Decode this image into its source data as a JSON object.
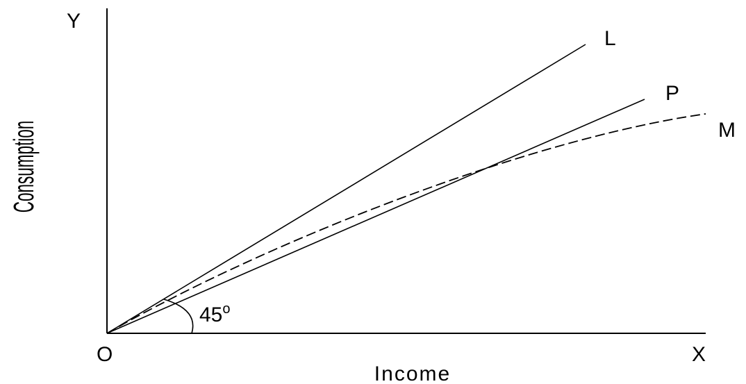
{
  "axes": {
    "y_label": "Y",
    "x_label": "X",
    "origin_label": "O",
    "x_axis_title": "Income",
    "y_axis_title": "Consumption"
  },
  "lines": [
    {
      "label": "L",
      "style": "solid"
    },
    {
      "label": "P",
      "style": "solid"
    },
    {
      "label": "M",
      "style": "dashed"
    }
  ],
  "angle": {
    "label": "45",
    "unit": "o"
  },
  "colors": {
    "background": "#ffffff",
    "ink": "#000000"
  }
}
